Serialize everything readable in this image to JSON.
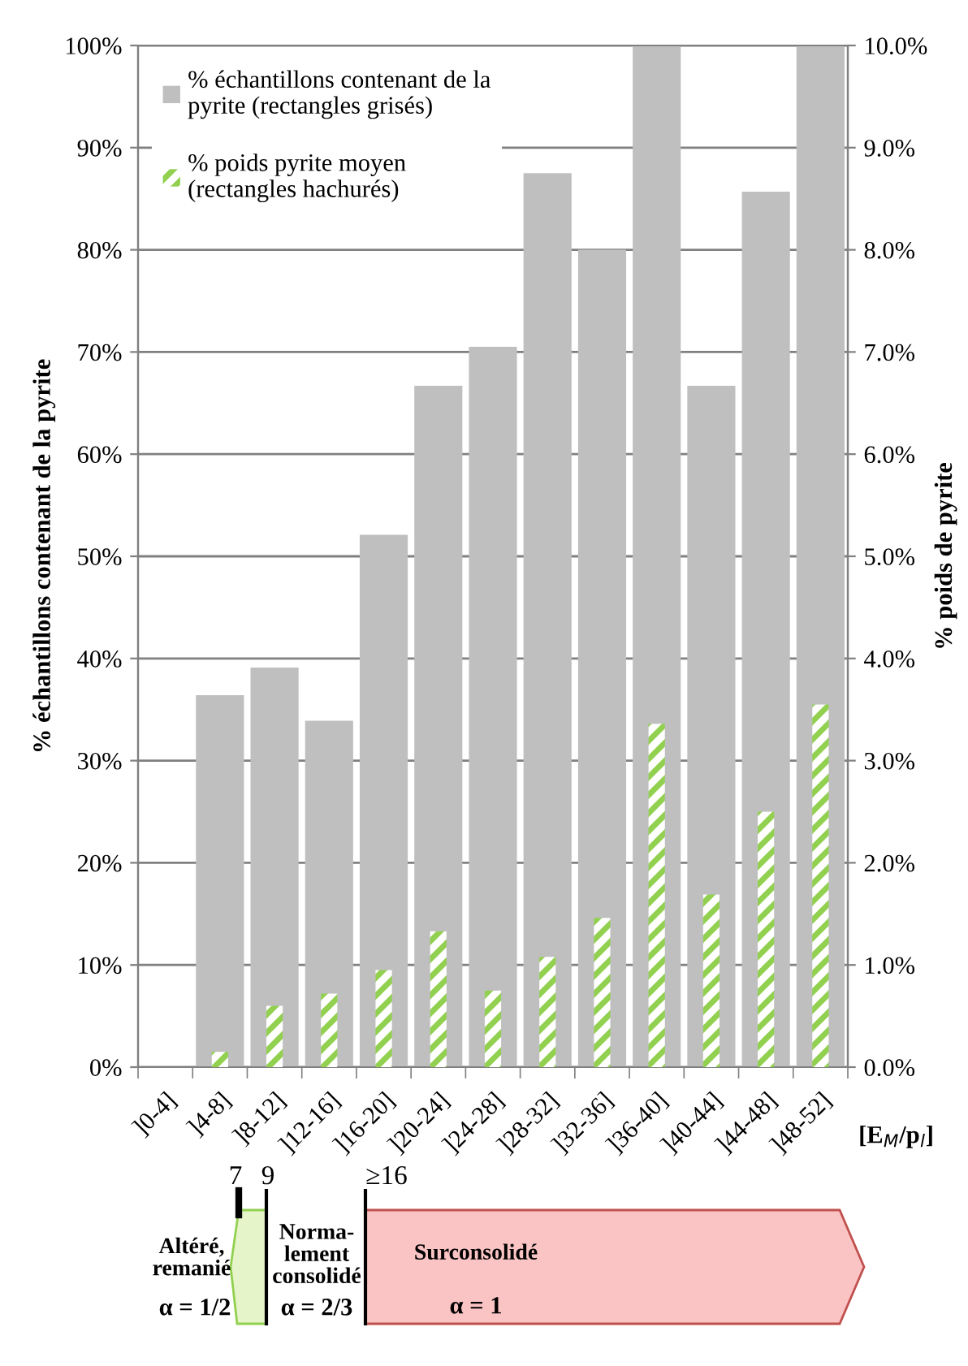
{
  "chart_data": {
    "type": "bar",
    "categories": [
      "]0-4]",
      "]4-8]",
      "]8-12]",
      "]12-16]",
      "]16-20]",
      "]20-24]",
      "]24-28]",
      "]28-32]",
      "]32-36]",
      "]36-40]",
      "]40-44]",
      "]44-48]",
      "]48-52]"
    ],
    "series": [
      {
        "name": "% échantillons contenant de la\npyrite (rectangles grisés)",
        "color": "#bfbfbf",
        "values": [
          null,
          36.4,
          39.1,
          33.9,
          52.1,
          66.7,
          70.5,
          87.5,
          80.0,
          100,
          66.7,
          85.7,
          100
        ]
      },
      {
        "name": "% poids pyrite moyen\n(rectangles hachurés)",
        "color": "#92d050",
        "axis": "y2",
        "values": [
          null,
          0.15,
          0.6,
          0.72,
          0.95,
          1.33,
          0.75,
          1.08,
          1.46,
          3.36,
          1.69,
          2.5,
          3.55
        ]
      }
    ],
    "xlabel": "[E$_{M}$/p$_{l}$]",
    "ylabel": "% échantillons contenant de la pyrite",
    "y2label": "% poids de pyrite",
    "ylim": [
      0,
      100
    ],
    "yticks": [
      {
        "value": 0,
        "label": "0%"
      },
      {
        "value": 10,
        "label": "10%"
      },
      {
        "value": 20,
        "label": "20%"
      },
      {
        "value": 30,
        "label": "30%"
      },
      {
        "value": 40,
        "label": "40%"
      },
      {
        "value": 50,
        "label": "50%"
      },
      {
        "value": 60,
        "label": "60%"
      },
      {
        "value": 70,
        "label": "70%"
      },
      {
        "value": 80,
        "label": "80%"
      },
      {
        "value": 90,
        "label": "90%"
      },
      {
        "value": 100,
        "label": "100%"
      }
    ],
    "y2lim": [
      0,
      10
    ],
    "y2ticks": [
      {
        "value": 0,
        "label": "0.0%"
      },
      {
        "value": 1,
        "label": "1.0%"
      },
      {
        "value": 2,
        "label": "2.0%"
      },
      {
        "value": 3,
        "label": "3.0%"
      },
      {
        "value": 4,
        "label": "4.0%"
      },
      {
        "value": 5,
        "label": "5.0%"
      },
      {
        "value": 6,
        "label": "6.0%"
      },
      {
        "value": 7,
        "label": "7.0%"
      },
      {
        "value": 8,
        "label": "8.0%"
      },
      {
        "value": 9,
        "label": "9.0%"
      },
      {
        "value": 10,
        "label": "10.0%"
      }
    ],
    "grid": "y",
    "legend": "top left",
    "annotations": [
      "7",
      "9",
      "≥16",
      "Altéré,\nremanié",
      "α = 1/2",
      "Norma-\nlement\nconsolidé",
      "α = 2/3",
      "Surconsolidé",
      "α = 1"
    ]
  }
}
